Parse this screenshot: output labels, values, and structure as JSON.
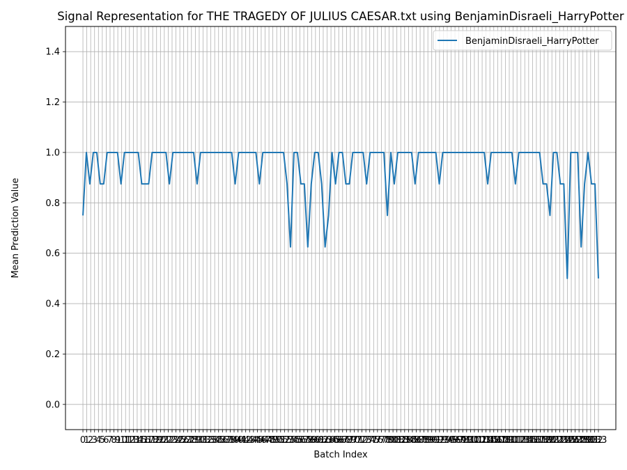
{
  "chart_data": {
    "type": "line",
    "title": "Signal Representation for THE TRAGEDY OF JULIUS CAESAR.txt using BenjaminDisraeli_HarryPotter",
    "xlabel": "Batch Index",
    "ylabel": "Mean Prediction Value",
    "xlim": [
      -4.5,
      137.5
    ],
    "ylim": [
      -0.1,
      1.5
    ],
    "yticks": [
      0.0,
      0.2,
      0.4,
      0.6,
      0.8,
      1.0,
      1.2,
      1.4
    ],
    "xticks_count": 134,
    "grid": true,
    "legend_position": "top-right",
    "series": [
      {
        "name": "BenjaminDisraeli_HarryPotter",
        "color": "#1f77b4",
        "values": [
          0.75,
          1.0,
          0.875,
          1.0,
          1.0,
          0.875,
          0.875,
          1.0,
          1.0,
          1.0,
          1.0,
          0.875,
          1.0,
          1.0,
          1.0,
          1.0,
          1.0,
          0.875,
          0.875,
          0.875,
          1.0,
          1.0,
          1.0,
          1.0,
          1.0,
          0.875,
          1.0,
          1.0,
          1.0,
          1.0,
          1.0,
          1.0,
          1.0,
          0.875,
          1.0,
          1.0,
          1.0,
          1.0,
          1.0,
          1.0,
          1.0,
          1.0,
          1.0,
          1.0,
          0.875,
          1.0,
          1.0,
          1.0,
          1.0,
          1.0,
          1.0,
          0.875,
          1.0,
          1.0,
          1.0,
          1.0,
          1.0,
          1.0,
          1.0,
          0.875,
          0.625,
          1.0,
          1.0,
          0.875,
          0.875,
          0.625,
          0.875,
          1.0,
          1.0,
          0.875,
          0.625,
          0.75,
          1.0,
          0.875,
          1.0,
          1.0,
          0.875,
          0.875,
          1.0,
          1.0,
          1.0,
          1.0,
          0.875,
          1.0,
          1.0,
          1.0,
          1.0,
          1.0,
          0.75,
          1.0,
          0.875,
          1.0,
          1.0,
          1.0,
          1.0,
          1.0,
          0.875,
          1.0,
          1.0,
          1.0,
          1.0,
          1.0,
          1.0,
          0.875,
          1.0,
          1.0,
          1.0,
          1.0,
          1.0,
          1.0,
          1.0,
          1.0,
          1.0,
          1.0,
          1.0,
          1.0,
          1.0,
          0.875,
          1.0,
          1.0,
          1.0,
          1.0,
          1.0,
          1.0,
          1.0,
          0.875,
          1.0,
          1.0,
          1.0,
          1.0,
          1.0,
          1.0,
          1.0,
          0.875,
          0.875,
          0.75,
          1.0,
          1.0,
          0.875,
          0.875,
          0.5,
          1.0,
          1.0,
          1.0,
          0.625,
          0.875,
          1.0,
          0.875,
          0.875,
          0.5
        ]
      }
    ]
  }
}
